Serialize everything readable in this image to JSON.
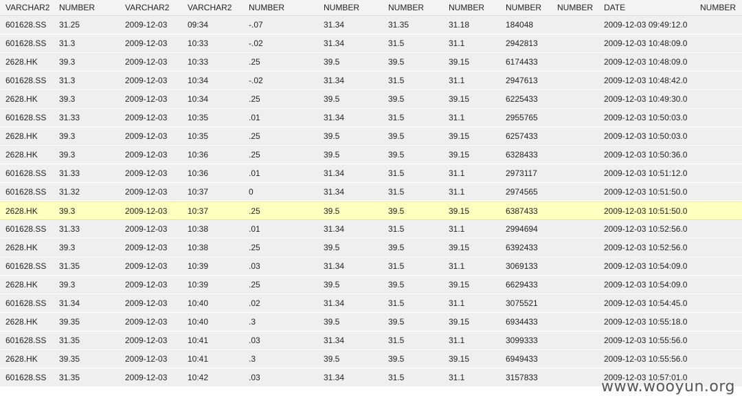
{
  "headers": [
    "VARCHAR2",
    "NUMBER",
    "VARCHAR2",
    "VARCHAR2",
    "NUMBER",
    "NUMBER",
    "NUMBER",
    "NUMBER",
    "NUMBER",
    "NUMBER",
    "DATE",
    "NUMBER"
  ],
  "rows": [
    [
      "601628.SS",
      "31.25",
      "2009-12-03",
      "09:34",
      "-.07",
      "31.34",
      "31.35",
      "31.18",
      "184048",
      "",
      "2009-12-03 09:49:12.0",
      ""
    ],
    [
      "601628.SS",
      "31.3",
      "2009-12-03",
      "10:33",
      "-.02",
      "31.34",
      "31.5",
      "31.1",
      "2942813",
      "",
      "2009-12-03 10:48:09.0",
      ""
    ],
    [
      "2628.HK",
      "39.3",
      "2009-12-03",
      "10:33",
      ".25",
      "39.5",
      "39.5",
      "39.15",
      "6174433",
      "",
      "2009-12-03 10:48:09.0",
      ""
    ],
    [
      "601628.SS",
      "31.3",
      "2009-12-03",
      "10:34",
      "-.02",
      "31.34",
      "31.5",
      "31.1",
      "2947613",
      "",
      "2009-12-03 10:48:42.0",
      ""
    ],
    [
      "2628.HK",
      "39.3",
      "2009-12-03",
      "10:34",
      ".25",
      "39.5",
      "39.5",
      "39.15",
      "6225433",
      "",
      "2009-12-03 10:49:30.0",
      ""
    ],
    [
      "601628.SS",
      "31.33",
      "2009-12-03",
      "10:35",
      ".01",
      "31.34",
      "31.5",
      "31.1",
      "2955765",
      "",
      "2009-12-03 10:50:03.0",
      ""
    ],
    [
      "2628.HK",
      "39.3",
      "2009-12-03",
      "10:35",
      ".25",
      "39.5",
      "39.5",
      "39.15",
      "6257433",
      "",
      "2009-12-03 10:50:03.0",
      ""
    ],
    [
      "2628.HK",
      "39.3",
      "2009-12-03",
      "10:36",
      ".25",
      "39.5",
      "39.5",
      "39.15",
      "6328433",
      "",
      "2009-12-03 10:50:36.0",
      ""
    ],
    [
      "601628.SS",
      "31.33",
      "2009-12-03",
      "10:36",
      ".01",
      "31.34",
      "31.5",
      "31.1",
      "2973117",
      "",
      "2009-12-03 10:51:12.0",
      ""
    ],
    [
      "601628.SS",
      "31.32",
      "2009-12-03",
      "10:37",
      "0",
      "31.34",
      "31.5",
      "31.1",
      "2974565",
      "",
      "2009-12-03 10:51:50.0",
      ""
    ],
    [
      "2628.HK",
      "39.3",
      "2009-12-03",
      "10:37",
      ".25",
      "39.5",
      "39.5",
      "39.15",
      "6387433",
      "",
      "2009-12-03 10:51:50.0",
      ""
    ],
    [
      "601628.SS",
      "31.33",
      "2009-12-03",
      "10:38",
      ".01",
      "31.34",
      "31.5",
      "31.1",
      "2994694",
      "",
      "2009-12-03 10:52:56.0",
      ""
    ],
    [
      "2628.HK",
      "39.3",
      "2009-12-03",
      "10:38",
      ".25",
      "39.5",
      "39.5",
      "39.15",
      "6392433",
      "",
      "2009-12-03 10:52:56.0",
      ""
    ],
    [
      "601628.SS",
      "31.35",
      "2009-12-03",
      "10:39",
      ".03",
      "31.34",
      "31.5",
      "31.1",
      "3069133",
      "",
      "2009-12-03 10:54:09.0",
      ""
    ],
    [
      "2628.HK",
      "39.3",
      "2009-12-03",
      "10:39",
      ".25",
      "39.5",
      "39.5",
      "39.15",
      "6629433",
      "",
      "2009-12-03 10:54:09.0",
      ""
    ],
    [
      "601628.SS",
      "31.34",
      "2009-12-03",
      "10:40",
      ".02",
      "31.34",
      "31.5",
      "31.1",
      "3075521",
      "",
      "2009-12-03 10:54:45.0",
      ""
    ],
    [
      "2628.HK",
      "39.35",
      "2009-12-03",
      "10:40",
      ".3",
      "39.5",
      "39.5",
      "39.15",
      "6934433",
      "",
      "2009-12-03 10:55:18.0",
      ""
    ],
    [
      "601628.SS",
      "31.35",
      "2009-12-03",
      "10:41",
      ".03",
      "31.34",
      "31.5",
      "31.1",
      "3099333",
      "",
      "2009-12-03 10:55:56.0",
      ""
    ],
    [
      "2628.HK",
      "39.35",
      "2009-12-03",
      "10:41",
      ".3",
      "39.5",
      "39.5",
      "39.15",
      "6949433",
      "",
      "2009-12-03 10:55:56.0",
      ""
    ],
    [
      "601628.SS",
      "31.35",
      "2009-12-03",
      "10:42",
      ".03",
      "31.34",
      "31.5",
      "31.1",
      "3157833",
      "",
      "2009-12-03 10:57:01.0",
      ""
    ]
  ],
  "highlight_index": 10,
  "colors": {
    "row_bg": "#efefef",
    "header_bg": "#f3f3f3",
    "highlight_bg": "#ffffc0"
  },
  "watermark": "www.wooyun.org"
}
